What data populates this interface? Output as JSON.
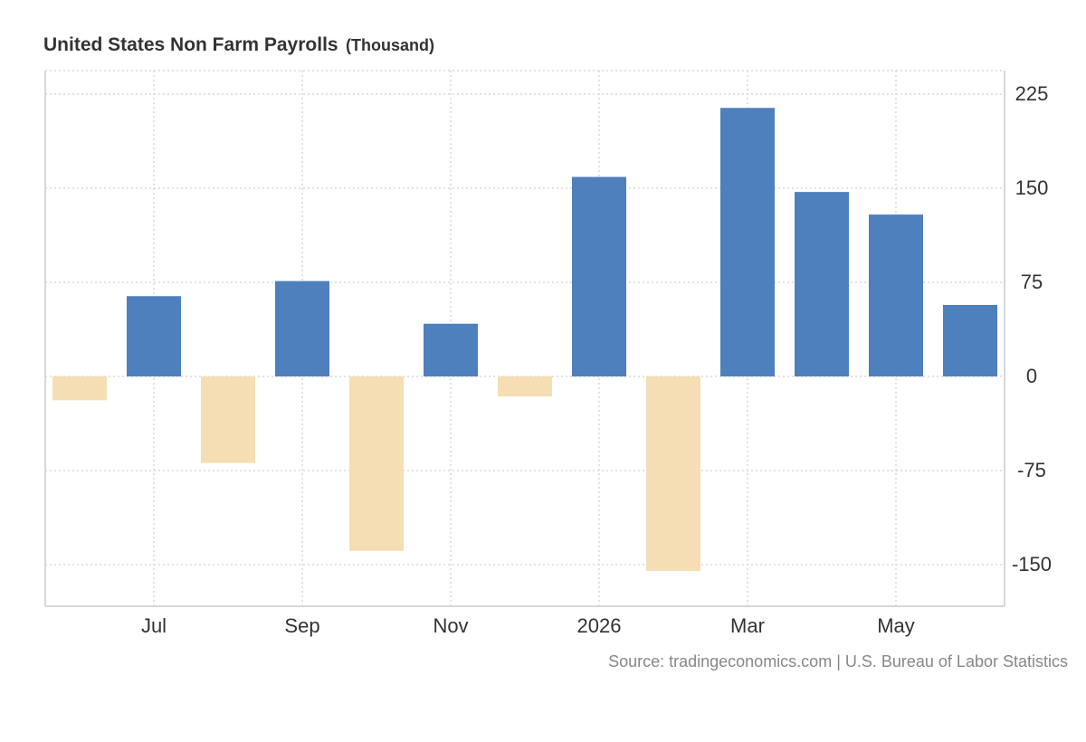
{
  "title": "United States Non Farm Payrolls",
  "unit": "(Thousand)",
  "source": "Source: tradingeconomics.com | U.S. Bureau of Labor Statistics",
  "colors": {
    "positive": "#4d80bd",
    "negative": "#f5deb3",
    "grid": "#d9d9d9",
    "axis": "#cccccc",
    "text": "#333333"
  },
  "chart_data": {
    "type": "bar",
    "categories": [
      "Jun 2025",
      "Jul 2025",
      "Aug 2025",
      "Sep 2025",
      "Oct 2025",
      "Nov 2025",
      "Dec 2025",
      "Jan 2026",
      "Feb 2026",
      "Mar 2026",
      "Apr 2026",
      "May 2026",
      "Jun 2026"
    ],
    "values": [
      -19,
      64,
      -69,
      76,
      -139,
      42,
      -16,
      159,
      -155,
      214,
      147,
      129,
      57
    ],
    "x_tick_labels": [
      {
        "category": "Jul 2025",
        "label": "Jul"
      },
      {
        "category": "Sep 2025",
        "label": "Sep"
      },
      {
        "category": "Nov 2025",
        "label": "Nov"
      },
      {
        "category": "Jan 2026",
        "label": "2026"
      },
      {
        "category": "Mar 2026",
        "label": "Mar"
      },
      {
        "category": "May 2026",
        "label": "May"
      }
    ],
    "y_ticks": [
      225,
      150,
      75,
      0,
      -75,
      -150
    ],
    "y_tick_labels": [
      "225",
      "150",
      "75",
      "0",
      "-75",
      "-150"
    ],
    "ylim": [
      -183,
      240
    ],
    "y_axis_side": "right",
    "grid": true,
    "legend": "none"
  }
}
